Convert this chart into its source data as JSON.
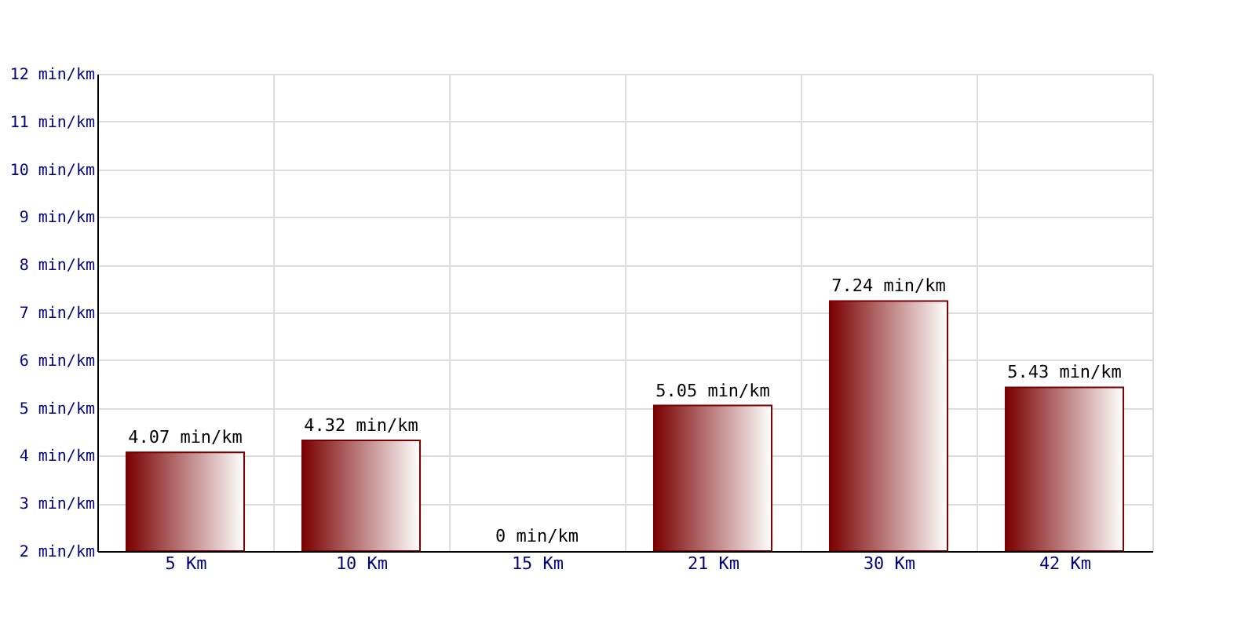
{
  "chart_data": {
    "type": "bar",
    "categories": [
      "5 Km",
      "10 Km",
      "15 Km",
      "21 Km",
      "30 Km",
      "42 Km"
    ],
    "values": [
      4.07,
      4.32,
      null,
      5.05,
      7.24,
      5.43
    ],
    "value_labels": [
      "4.07 min/km",
      "4.32 min/km",
      "0 min/km",
      "5.05 min/km",
      "7.24 min/km",
      "5.43 min/km"
    ],
    "color": "#7a0000",
    "ylim": [
      2,
      12
    ],
    "yticks": [
      {
        "value": 2,
        "label": "2 min/km"
      },
      {
        "value": 3,
        "label": "3 min/km"
      },
      {
        "value": 4,
        "label": "4 min/km"
      },
      {
        "value": 5,
        "label": "5 min/km"
      },
      {
        "value": 6,
        "label": "6 min/km"
      },
      {
        "value": 7,
        "label": "7 min/km"
      },
      {
        "value": 8,
        "label": "8 min/km"
      },
      {
        "value": 9,
        "label": "9 min/km"
      },
      {
        "value": 10,
        "label": "10 min/km"
      },
      {
        "value": 11,
        "label": "11 min/km"
      },
      {
        "value": 12,
        "label": "12 min/km"
      }
    ],
    "grid": true
  }
}
